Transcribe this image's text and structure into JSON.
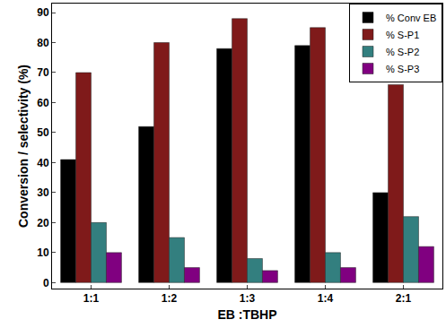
{
  "chart_data": {
    "type": "bar",
    "x_label": "EB :TBHP",
    "y_label": "Conversion / selectivity (%)",
    "categories": [
      "1:1",
      "1:2",
      "1:3",
      "1:4",
      "2:1"
    ],
    "series": [
      {
        "name": "% Conv EB",
        "color": "#000000",
        "values": [
          41,
          52,
          78,
          79,
          30
        ]
      },
      {
        "name": "% S-P1",
        "color": "#7f1a1a",
        "values": [
          70,
          80,
          88,
          85,
          66
        ]
      },
      {
        "name": "% S-P2",
        "color": "#337f7f",
        "values": [
          20,
          15,
          8,
          10,
          22
        ]
      },
      {
        "name": "% S-P3",
        "color": "#800080",
        "values": [
          10,
          5,
          4,
          5,
          12
        ]
      }
    ],
    "ylim": [
      -2,
      93
    ],
    "yticks": [
      0,
      10,
      20,
      30,
      40,
      50,
      60,
      70,
      80,
      90
    ],
    "grid": false,
    "legend": "upper right"
  }
}
